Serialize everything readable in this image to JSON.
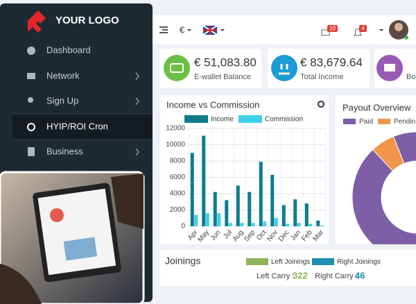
{
  "sidebar": {
    "logo": "YOUR LOGO",
    "menu": [
      {
        "label": "Dashboard"
      },
      {
        "label": "Network"
      },
      {
        "label": "Sign Up"
      },
      {
        "label": "HYIP/ROI Cron"
      },
      {
        "label": "Business"
      }
    ]
  },
  "topbar": {
    "currency": "€",
    "mail_count": "10",
    "alert_count": "4"
  },
  "cards": [
    {
      "amount": "€ 51,083.80",
      "label": "E-wallet Balance"
    },
    {
      "amount": "€ 83,679.64",
      "label": "Total Income"
    },
    {
      "label": "Bo"
    }
  ],
  "chart_data": [
    {
      "type": "bar",
      "title": "Income vs Commission",
      "categories": [
        "Apr",
        "May",
        "Jun",
        "Jul",
        "Aug",
        "Sep",
        "Oct",
        "Nov",
        "Dec",
        "Jan",
        "Feb",
        "Mar"
      ],
      "series": [
        {
          "name": "Income",
          "color": "#0e7c8c",
          "values": [
            9000,
            11100,
            4200,
            3200,
            5000,
            4200,
            7900,
            6300,
            2600,
            3300,
            2800,
            700
          ]
        },
        {
          "name": "Commission",
          "color": "#3fd0e8",
          "values": [
            1400,
            1600,
            1600,
            400,
            400,
            400,
            600,
            1000,
            300,
            400,
            300,
            100
          ]
        }
      ],
      "ylim": [
        0,
        12000
      ],
      "yticks": [
        0,
        2000,
        4000,
        6000,
        8000,
        10000,
        12000
      ],
      "grid": true
    },
    {
      "type": "pie",
      "title": "Payout Overview",
      "donut": true,
      "categories": [
        "Paid",
        "Pendin"
      ],
      "values": [
        94,
        6
      ],
      "colors": [
        "#7e5ea6",
        "#f0954a"
      ]
    }
  ],
  "joinings": {
    "title": "Joinings",
    "legend": [
      {
        "name": "Left Joinings",
        "color": "#8fb35a"
      },
      {
        "name": "Right Joinings",
        "color": "#1e8fb0"
      }
    ],
    "left_carry_label": "Left Carry :",
    "left_carry": "322",
    "right_carry_label": "Right Carry :",
    "right_carry": "46"
  }
}
